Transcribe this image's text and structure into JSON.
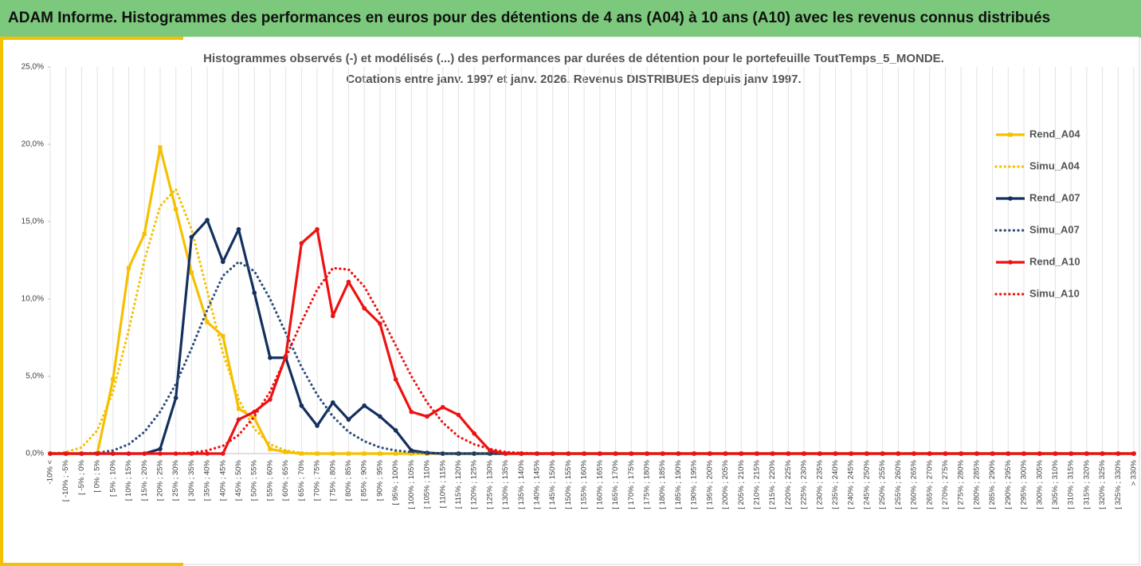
{
  "header": {
    "title": "ADAM Informe. Histogrammes des performances en euros pour des détentions de 4 ans (A04) à 10 ans (A10) avec les revenus connus distribués"
  },
  "chart_data": {
    "type": "line",
    "title": "Histogrammes observés (-) et modélisés (...) des performances par durées de détention pour le portefeuille ToutTemps_5_MONDE.",
    "subtitle": "Cotations entre janv. 1997 et janv. 2026. Revenus DISTRIBUES depuis janv 1997.",
    "categories": [
      "-10% <",
      "[ -10% ; -5%",
      "[ -5% ; 0%",
      "[ 0% ; 5%",
      "[ 5% ; 10%",
      "[ 10% ; 15%",
      "[ 15% ; 20%",
      "[ 20% ; 25%",
      "[ 25% ; 30%",
      "[ 30% ; 35%",
      "[ 35% ; 40%",
      "[ 40% ; 45%",
      "[ 45% ; 50%",
      "[ 50% ; 55%",
      "[ 55% ; 60%",
      "[ 60% ; 65%",
      "[ 65% ; 70%",
      "[ 70% ; 75%",
      "[ 75% ; 80%",
      "[ 80% ; 85%",
      "[ 85% ; 90%",
      "[ 90% ; 95%",
      "[ 95% ; 100%",
      "[ 100% ; 105%",
      "[ 105% ; 110%",
      "[ 110% ; 115%",
      "[ 115% ; 120%",
      "[ 120% ; 125%",
      "[ 125% ; 130%",
      "[ 130% ; 135%",
      "[ 135% ; 140%",
      "[ 140% ; 145%",
      "[ 145% ; 150%",
      "[ 150% ; 155%",
      "[ 155% ; 160%",
      "[ 160% ; 165%",
      "[ 165% ; 170%",
      "[ 170% ; 175%",
      "[ 175% ; 180%",
      "[ 180% ; 185%",
      "[ 185% ; 190%",
      "[ 190% ; 195%",
      "[ 195% ; 200%",
      "[ 200% ; 205%",
      "[ 205% ; 210%",
      "[ 210% ; 215%",
      "[ 215% ; 220%",
      "[ 220% ; 225%",
      "[ 225% ; 230%",
      "[ 230% ; 235%",
      "[ 235% ; 240%",
      "[ 240% ; 245%",
      "[ 245% ; 250%",
      "[ 250% ; 255%",
      "[ 255% ; 260%",
      "[ 260% ; 265%",
      "[ 265% ; 270%",
      "[ 270% ; 275%",
      "[ 275% ; 280%",
      "[ 280% ; 285%",
      "[ 285% ; 290%",
      "[ 290% ; 295%",
      "[ 295% ; 300%",
      "[ 300% ; 305%",
      "[ 305% ; 310%",
      "[ 310% ; 315%",
      "[ 315% ; 320%",
      "[ 320% ; 325%",
      "[ 325% ; 330%",
      "> 330%"
    ],
    "series": [
      {
        "name": "Rend_A04",
        "color": "#f5c000",
        "style": "solid",
        "marker": "square",
        "values": [
          0,
          0,
          0,
          0,
          4.8,
          12.0,
          14.2,
          19.8,
          15.8,
          11.7,
          8.5,
          7.6,
          2.9,
          2.3,
          0.3,
          0.1,
          0,
          0,
          0,
          0,
          0,
          0,
          0,
          0,
          0,
          0,
          0,
          0,
          0,
          0,
          0,
          0,
          0,
          0,
          0,
          0,
          0,
          0,
          0,
          0,
          0,
          0,
          0,
          0,
          0,
          0,
          0,
          0,
          0,
          0,
          0,
          0,
          0,
          0,
          0,
          0,
          0,
          0,
          0,
          0,
          0,
          0,
          0,
          0,
          0,
          0,
          0,
          0,
          0,
          0
        ]
      },
      {
        "name": "Simu_A04",
        "color": "#f5c000",
        "style": "dotted",
        "marker": "none",
        "values": [
          0,
          0.1,
          0.4,
          1.5,
          4.0,
          8.0,
          12.5,
          16.0,
          17.1,
          14.5,
          10.5,
          6.5,
          3.5,
          1.6,
          0.6,
          0.2,
          0.05,
          0,
          0,
          0,
          0,
          0,
          0,
          0,
          0,
          0,
          0,
          0,
          0,
          0,
          0,
          0,
          0,
          0,
          0,
          0,
          0,
          0,
          0,
          0,
          0,
          0,
          0,
          0,
          0,
          0,
          0,
          0,
          0,
          0,
          0,
          0,
          0,
          0,
          0,
          0,
          0,
          0,
          0,
          0,
          0,
          0,
          0,
          0,
          0,
          0,
          0,
          0,
          0,
          0
        ]
      },
      {
        "name": "Rend_A07",
        "color": "#14305e",
        "style": "solid",
        "marker": "circle",
        "values": [
          0,
          0,
          0,
          0,
          0,
          0,
          0,
          0.3,
          3.6,
          14.0,
          15.1,
          12.4,
          14.5,
          10.4,
          6.2,
          6.2,
          3.1,
          1.8,
          3.3,
          2.2,
          3.1,
          2.4,
          1.5,
          0.2,
          0.05,
          0,
          0,
          0,
          0,
          0,
          0,
          0,
          0,
          0,
          0,
          0,
          0,
          0,
          0,
          0,
          0,
          0,
          0,
          0,
          0,
          0,
          0,
          0,
          0,
          0,
          0,
          0,
          0,
          0,
          0,
          0,
          0,
          0,
          0,
          0,
          0,
          0,
          0,
          0,
          0,
          0,
          0,
          0,
          0,
          0
        ]
      },
      {
        "name": "Simu_A07",
        "color": "#2d4f7c",
        "style": "dotted",
        "marker": "none",
        "values": [
          0,
          0,
          0,
          0.05,
          0.2,
          0.6,
          1.4,
          2.7,
          4.5,
          6.8,
          9.3,
          11.5,
          12.4,
          11.8,
          10.0,
          7.8,
          5.6,
          3.8,
          2.4,
          1.4,
          0.8,
          0.4,
          0.2,
          0.1,
          0.05,
          0,
          0,
          0,
          0,
          0,
          0,
          0,
          0,
          0,
          0,
          0,
          0,
          0,
          0,
          0,
          0,
          0,
          0,
          0,
          0,
          0,
          0,
          0,
          0,
          0,
          0,
          0,
          0,
          0,
          0,
          0,
          0,
          0,
          0,
          0,
          0,
          0,
          0,
          0,
          0,
          0,
          0,
          0,
          0,
          0
        ]
      },
      {
        "name": "Rend_A10",
        "color": "#ee1111",
        "style": "solid",
        "marker": "circle",
        "values": [
          0,
          0,
          0,
          0,
          0,
          0,
          0,
          0,
          0,
          0,
          0,
          0,
          2.2,
          2.7,
          3.5,
          6.3,
          13.6,
          14.5,
          8.9,
          11.1,
          9.4,
          8.4,
          4.8,
          2.7,
          2.4,
          3.0,
          2.5,
          1.3,
          0.2,
          0,
          0,
          0,
          0,
          0,
          0,
          0,
          0,
          0,
          0,
          0,
          0,
          0,
          0,
          0,
          0,
          0,
          0,
          0,
          0,
          0,
          0,
          0,
          0,
          0,
          0,
          0,
          0,
          0,
          0,
          0,
          0,
          0,
          0,
          0,
          0,
          0,
          0,
          0,
          0,
          0
        ]
      },
      {
        "name": "Simu_A10",
        "color": "#ee1111",
        "style": "dotted",
        "marker": "none",
        "values": [
          0,
          0,
          0,
          0,
          0,
          0,
          0,
          0,
          0,
          0.05,
          0.2,
          0.5,
          1.2,
          2.4,
          4.0,
          6.2,
          8.5,
          10.6,
          12.0,
          11.9,
          10.8,
          9.0,
          7.0,
          5.0,
          3.3,
          2.0,
          1.1,
          0.6,
          0.3,
          0.1,
          0.05,
          0,
          0,
          0,
          0,
          0,
          0,
          0,
          0,
          0,
          0,
          0,
          0,
          0,
          0,
          0,
          0,
          0,
          0,
          0,
          0,
          0,
          0,
          0,
          0,
          0,
          0,
          0,
          0,
          0,
          0,
          0,
          0,
          0,
          0,
          0,
          0,
          0,
          0,
          0
        ]
      }
    ],
    "ylim": [
      0,
      25
    ],
    "yticks": [
      {
        "value": 0,
        "label": "0,0%"
      },
      {
        "value": 5,
        "label": "5,0%"
      },
      {
        "value": 10,
        "label": "10,0%"
      },
      {
        "value": 15,
        "label": "15,0%"
      },
      {
        "value": 20,
        "label": "20,0%"
      },
      {
        "value": 25,
        "label": "25,0%"
      }
    ],
    "grid": "x",
    "legend": "right"
  }
}
